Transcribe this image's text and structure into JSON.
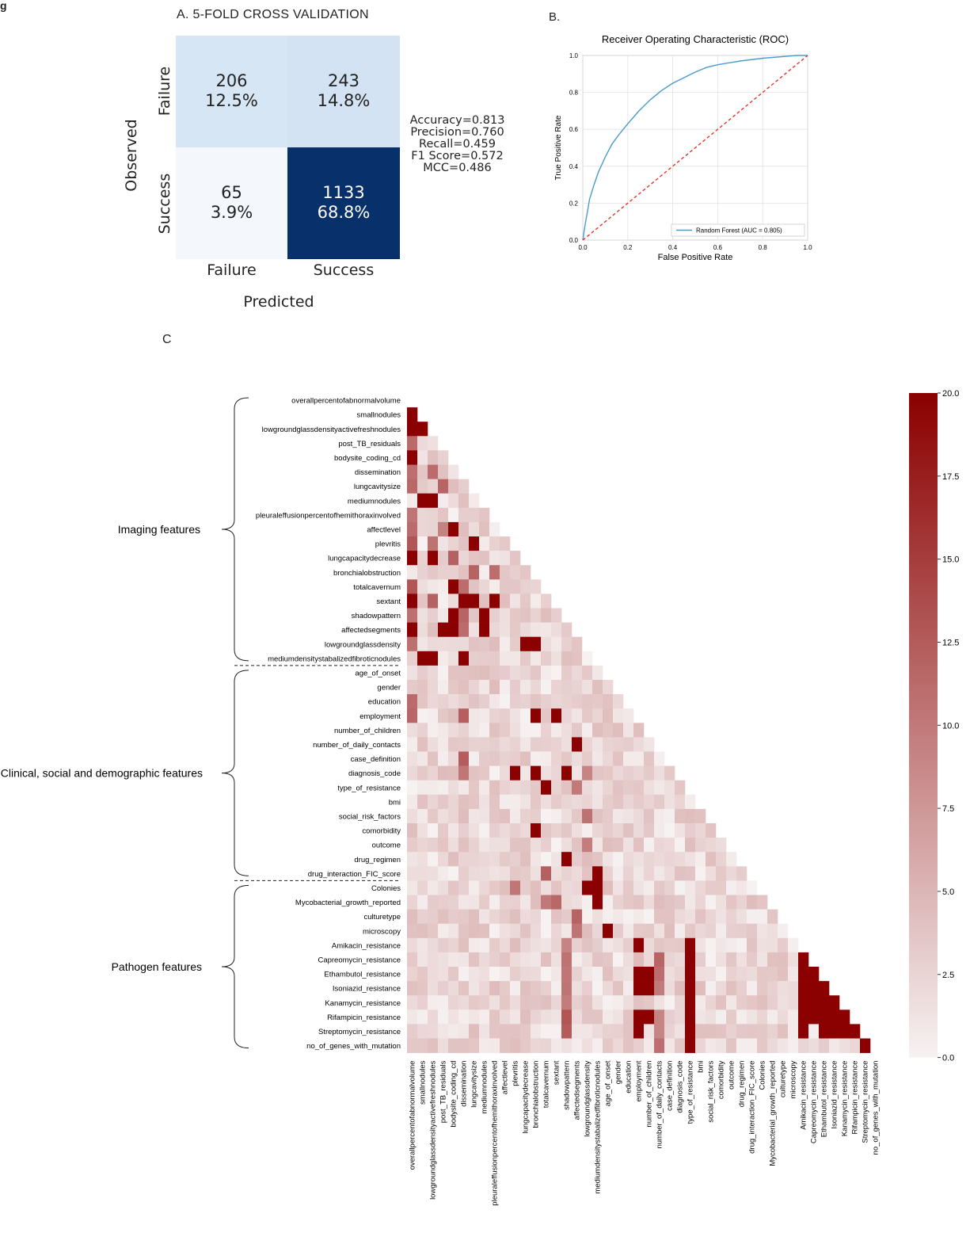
{
  "figure_label": "g",
  "panel_a": {
    "letter_title": "A. 5-FOLD CROSS VALIDATION",
    "ylabel": "Observed",
    "xlabel": "Predicted",
    "row_labels": [
      "Failure",
      "Success"
    ],
    "col_labels": [
      "Failure",
      "Success"
    ],
    "cells": [
      {
        "count": "206",
        "pct": "12.5%",
        "color": "#d6e6f4"
      },
      {
        "count": "243",
        "pct": "14.8%",
        "color": "#d3e3f3"
      },
      {
        "count": "65",
        "pct": "3.9%",
        "color": "#f4f8fd"
      },
      {
        "count": "1133",
        "pct": "68.8%",
        "color": "#08306b"
      }
    ],
    "metrics": [
      "Accuracy=0.813",
      "Precision=0.760",
      "Recall=0.459",
      "F1 Score=0.572",
      "MCC=0.486"
    ]
  },
  "panel_b": {
    "letter": "B.",
    "chart_data": {
      "type": "line",
      "title": "Receiver Operating Characteristic (ROC)",
      "xlabel": "False Positive Rate",
      "ylabel": "True Positive Rate",
      "xlim": [
        0,
        1
      ],
      "ylim": [
        0,
        1
      ],
      "xticks": [
        "0.0",
        "0.2",
        "0.4",
        "0.6",
        "0.8",
        "1.0"
      ],
      "yticks": [
        "0.0",
        "0.2",
        "0.4",
        "0.6",
        "0.8",
        "1.0"
      ],
      "grid": true,
      "legend_position": "lower-right",
      "series": [
        {
          "name": "Random Forest (AUC = 0.805)",
          "color": "#4a9ccc",
          "x": [
            0,
            0.005,
            0.01,
            0.02,
            0.03,
            0.05,
            0.07,
            0.1,
            0.13,
            0.16,
            0.2,
            0.25,
            0.3,
            0.35,
            0.4,
            0.45,
            0.5,
            0.55,
            0.6,
            0.65,
            0.7,
            0.8,
            0.9,
            0.95,
            1.0
          ],
          "y": [
            0,
            0.04,
            0.08,
            0.15,
            0.22,
            0.3,
            0.37,
            0.45,
            0.52,
            0.57,
            0.63,
            0.7,
            0.76,
            0.81,
            0.85,
            0.88,
            0.91,
            0.935,
            0.95,
            0.96,
            0.97,
            0.985,
            0.995,
            1.0,
            1.0
          ]
        },
        {
          "color": "#e0382d",
          "dashed": true,
          "x": [
            0,
            1
          ],
          "y": [
            0,
            1
          ]
        }
      ]
    }
  },
  "panel_c": {
    "letter": "C",
    "group_labels": [
      "Imaging features",
      "Clinical, social and demographic features",
      "Pathogen features"
    ],
    "chart_data": {
      "type": "heatmap",
      "labels": [
        "overallpercentofabnormalvolume",
        "smallnodules",
        "lowgroundglassdensityactivefreshnodules",
        "post_TB_residuals",
        "bodysite_coding_cd",
        "dissemination",
        "lungcavitysize",
        "mediumnodules",
        "pleuraleffusionpercentofhemithoraxinvolved",
        "affectlevel",
        "plevritis",
        "lungcapacitydecrease",
        "bronchialobstruction",
        "totalcavernum",
        "sextant",
        "shadowpattern",
        "affectedsegments",
        "lowgroundglassdensity",
        "mediumdensitystabalizedfibroticnodules",
        "age_of_onset",
        "gender",
        "education",
        "employment",
        "number_of_children",
        "number_of_daily_contacts",
        "case_definition",
        "diagnosis_code",
        "type_of_resistance",
        "bmi",
        "social_risk_factors",
        "comorbidity",
        "outcome",
        "drug_regimen",
        "drug_interaction_FIC_score",
        "Colonies",
        "Mycobacterial_growth_reported",
        "culturetype",
        "microscopy",
        "Amikacin_resistance",
        "Capreomycin_resistance",
        "Ethambutol_resistance",
        "Isoniazid_resistance",
        "Kanamycin_resistance",
        "Rifampicin_resistance",
        "Streptomycin_resistance",
        "no_of_genes_with_mutation"
      ],
      "x_labels": [
        "overallpercentofabnormalvolume",
        "smallnodules",
        "lowgroundglassdensityactivefreshnodules",
        "post_TB_residuals",
        "bodysite_coding_cd",
        "dissemination",
        "lungcavitysize",
        "mediumnodules",
        "pleuraleffusionpercentofhemithoraxinvolved",
        "affectlevel",
        "plevritis",
        "lungcapacitydecrease",
        "bronchialobstruction",
        "totalcavernum",
        "sextant",
        "shadowpattern",
        "affectedsegments",
        "lowgroundglassdensity",
        "mediumdensitystabalizedfibroticnodules",
        "age_of_onset",
        "gender",
        "education",
        "employment",
        "number_of_children",
        "number_of_daily_contacts",
        "case_definition",
        "diagnosis_code",
        "type_of_resistance",
        "bmi",
        "social_risk_factors",
        "comorbidity",
        "outcome",
        "drug_regimen",
        "drug_interaction_FIC_score",
        "Colonies",
        "Mycobacterial_growth_reported",
        "culturetype",
        "microscopy",
        "Amikacin_resistance",
        "Capreomycin_resistance",
        "Ethambutol_resistance",
        "Isoniazid_resistance",
        "Kanamycin_resistance",
        "Rifampicin_resistance",
        "Streptomycin_resistance",
        "no_of_genes_with_mutation"
      ],
      "vmin": 0,
      "vmax": 20,
      "colorbar_ticks": [
        "0.0",
        "2.5",
        "5.0",
        "7.5",
        "10.0",
        "12.5",
        "15.0",
        "17.5",
        "20.0"
      ],
      "color_low": "#f7f2f2",
      "color_high": "#8b0000",
      "strong_cells": [
        [
          1,
          0
        ],
        [
          2,
          0
        ],
        [
          2,
          1
        ],
        [
          4,
          0
        ],
        [
          7,
          1
        ],
        [
          7,
          2
        ],
        [
          9,
          4
        ],
        [
          10,
          6
        ],
        [
          11,
          0
        ],
        [
          11,
          2
        ],
        [
          13,
          4
        ],
        [
          14,
          0
        ],
        [
          14,
          5
        ],
        [
          14,
          6
        ],
        [
          14,
          8
        ],
        [
          15,
          4
        ],
        [
          15,
          7
        ],
        [
          16,
          0
        ],
        [
          16,
          3
        ],
        [
          16,
          4
        ],
        [
          16,
          7
        ],
        [
          17,
          11
        ],
        [
          17,
          12
        ],
        [
          18,
          1
        ],
        [
          18,
          2
        ],
        [
          18,
          5
        ],
        [
          22,
          12
        ],
        [
          22,
          14
        ],
        [
          24,
          16
        ],
        [
          26,
          10
        ],
        [
          26,
          12
        ],
        [
          26,
          15
        ],
        [
          27,
          13
        ],
        [
          30,
          12
        ],
        [
          32,
          15
        ],
        [
          33,
          18
        ],
        [
          34,
          17
        ],
        [
          34,
          18
        ],
        [
          35,
          18
        ],
        [
          37,
          19
        ],
        [
          38,
          27
        ],
        [
          39,
          27
        ],
        [
          40,
          27
        ],
        [
          41,
          27
        ],
        [
          42,
          27
        ],
        [
          43,
          27
        ],
        [
          44,
          27
        ],
        [
          45,
          27
        ],
        [
          38,
          22
        ],
        [
          40,
          22
        ],
        [
          40,
          23
        ],
        [
          41,
          22
        ],
        [
          41,
          23
        ],
        [
          43,
          22
        ],
        [
          43,
          23
        ],
        [
          44,
          22
        ],
        [
          39,
          38
        ],
        [
          40,
          38
        ],
        [
          40,
          39
        ],
        [
          41,
          38
        ],
        [
          41,
          39
        ],
        [
          41,
          40
        ],
        [
          42,
          38
        ],
        [
          42,
          39
        ],
        [
          42,
          40
        ],
        [
          42,
          41
        ],
        [
          43,
          38
        ],
        [
          43,
          39
        ],
        [
          43,
          40
        ],
        [
          43,
          41
        ],
        [
          43,
          42
        ],
        [
          44,
          38
        ],
        [
          44,
          40
        ],
        [
          44,
          41
        ],
        [
          44,
          42
        ],
        [
          44,
          43
        ],
        [
          45,
          44
        ]
      ],
      "medium_cells": [
        [
          3,
          0
        ],
        [
          5,
          0
        ],
        [
          5,
          2
        ],
        [
          6,
          0
        ],
        [
          6,
          3
        ],
        [
          8,
          0
        ],
        [
          9,
          0
        ],
        [
          9,
          3
        ],
        [
          10,
          0
        ],
        [
          10,
          2
        ],
        [
          11,
          4
        ],
        [
          12,
          6
        ],
        [
          12,
          8
        ],
        [
          13,
          0
        ],
        [
          13,
          5
        ],
        [
          14,
          2
        ],
        [
          15,
          0
        ],
        [
          15,
          5
        ],
        [
          16,
          5
        ],
        [
          17,
          0
        ],
        [
          19,
          19
        ],
        [
          21,
          0
        ],
        [
          22,
          0
        ],
        [
          22,
          5
        ],
        [
          25,
          5
        ],
        [
          26,
          5
        ],
        [
          26,
          17
        ],
        [
          27,
          16
        ],
        [
          29,
          17
        ],
        [
          31,
          17
        ],
        [
          33,
          13
        ],
        [
          34,
          10
        ],
        [
          35,
          13
        ],
        [
          35,
          14
        ],
        [
          36,
          16
        ],
        [
          37,
          16
        ],
        [
          38,
          15
        ],
        [
          39,
          15
        ],
        [
          40,
          15
        ],
        [
          41,
          15
        ],
        [
          42,
          15
        ],
        [
          43,
          15
        ],
        [
          44,
          15
        ],
        [
          39,
          24
        ],
        [
          40,
          24
        ],
        [
          41,
          24
        ],
        [
          43,
          24
        ],
        [
          44,
          24
        ],
        [
          45,
          24
        ],
        [
          42,
          45
        ]
      ]
    }
  }
}
